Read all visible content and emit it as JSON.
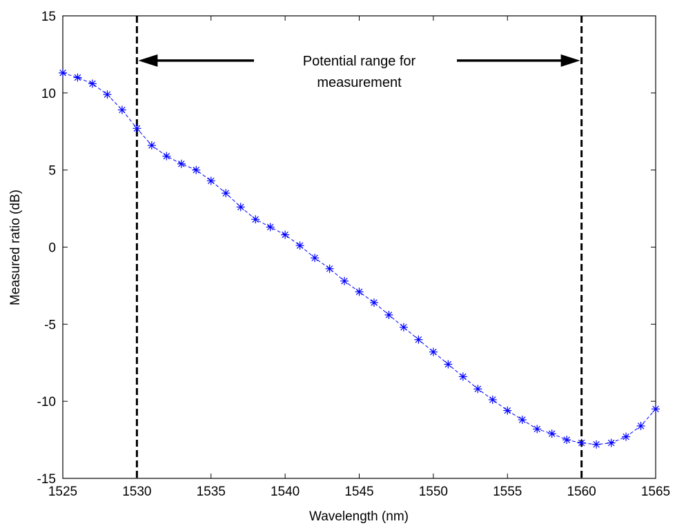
{
  "chart_data": {
    "type": "line",
    "xlabel": "Wavelength (nm)",
    "ylabel": "Measured ratio (dB)",
    "xlim": [
      1525,
      1565
    ],
    "ylim": [
      -15,
      15
    ],
    "xticks": [
      1525,
      1530,
      1535,
      1540,
      1545,
      1550,
      1555,
      1560,
      1565
    ],
    "yticks": [
      -15,
      -10,
      -5,
      0,
      5,
      10,
      15
    ],
    "grid": false,
    "series": [
      {
        "color": "#0000ff",
        "line_style": "dashed",
        "marker": "asterisk",
        "x": [
          1525,
          1526,
          1527,
          1528,
          1529,
          1530,
          1531,
          1532,
          1533,
          1534,
          1535,
          1536,
          1537,
          1538,
          1539,
          1540,
          1541,
          1542,
          1543,
          1544,
          1545,
          1546,
          1547,
          1548,
          1549,
          1550,
          1551,
          1552,
          1553,
          1554,
          1555,
          1556,
          1557,
          1558,
          1559,
          1560,
          1561,
          1562,
          1563,
          1564,
          1565
        ],
        "y": [
          11.3,
          11.0,
          10.6,
          9.9,
          8.9,
          7.7,
          6.6,
          5.9,
          5.4,
          5.0,
          4.3,
          3.5,
          2.6,
          1.8,
          1.3,
          0.8,
          0.1,
          -0.7,
          -1.4,
          -2.2,
          -2.9,
          -3.6,
          -4.4,
          -5.2,
          -6.0,
          -6.8,
          -7.6,
          -8.4,
          -9.2,
          -9.9,
          -10.6,
          -11.2,
          -11.8,
          -12.1,
          -12.5,
          -12.7,
          -12.8,
          -12.7,
          -12.3,
          -11.6,
          -10.5
        ]
      }
    ],
    "vertical_lines": [
      {
        "x": 1530,
        "color": "#000000",
        "style": "dashed"
      },
      {
        "x": 1560,
        "color": "#000000",
        "style": "dashed"
      }
    ],
    "annotation": {
      "lines": [
        "Potential range for",
        "measurement"
      ],
      "arrow_from": 1530,
      "arrow_to": 1560,
      "y": 12.1
    }
  }
}
